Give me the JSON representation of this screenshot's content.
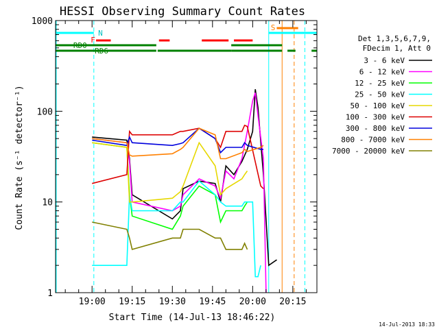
{
  "chart_data": {
    "type": "line",
    "title": "HESSI Observing Summary Count Rates",
    "xlabel": "Start Time (14-Jul-13 18:46:22)",
    "ylabel": "Count Rate (s⁻¹ detector⁻¹)",
    "y_scale": "log",
    "ylim": [
      1,
      1000
    ],
    "xlim": [
      "18:46:22",
      "20:24:00"
    ],
    "x_ticks": [
      "19:00",
      "19:15",
      "19:30",
      "19:45",
      "20:00",
      "20:15"
    ],
    "y_ticks": [
      "1",
      "10",
      "100",
      "1000"
    ],
    "grid": false,
    "legend_header": [
      "Det 1,3,5,6,7,9,",
      "FDecim 1, Att 0"
    ],
    "legend_position": "right",
    "timestamp": "14-Jul-2013 18:33",
    "flag_labels": {
      "N": "N",
      "F": "F",
      "RD0": "RD0",
      "RD6": "RD6",
      "S": "S"
    },
    "series": [
      {
        "name": "3 - 6 keV",
        "color": "#000000",
        "points": [
          [
            0,
            52
          ],
          [
            13,
            48
          ],
          [
            14,
            30
          ],
          [
            15,
            12
          ],
          [
            30,
            6.5
          ],
          [
            33,
            8
          ],
          [
            34,
            14
          ],
          [
            40,
            17
          ],
          [
            46,
            16
          ],
          [
            48,
            10
          ],
          [
            50,
            25
          ],
          [
            53,
            20
          ],
          [
            56,
            28
          ],
          [
            58,
            38
          ],
          [
            60,
            60
          ],
          [
            61,
            175
          ],
          [
            62,
            110
          ],
          [
            64,
            20
          ],
          [
            66,
            2
          ],
          [
            68,
            2.2
          ],
          [
            69,
            2.3
          ]
        ]
      },
      {
        "name": "6 - 12 keV",
        "color": "#ff00ff",
        "points": [
          [
            0,
            50
          ],
          [
            13,
            45
          ],
          [
            14,
            28
          ],
          [
            15,
            10
          ],
          [
            30,
            8
          ],
          [
            33,
            9
          ],
          [
            34,
            12
          ],
          [
            40,
            18
          ],
          [
            46,
            15
          ],
          [
            48,
            11
          ],
          [
            50,
            22
          ],
          [
            53,
            18
          ],
          [
            56,
            30
          ],
          [
            58,
            60
          ],
          [
            60,
            130
          ],
          [
            61,
            160
          ],
          [
            62,
            90
          ],
          [
            64,
            30
          ],
          [
            65,
            1
          ]
        ]
      },
      {
        "name": "12 - 25 keV",
        "color": "#00ff00",
        "points": [
          [
            0,
            45
          ],
          [
            13,
            40
          ],
          [
            14,
            12
          ],
          [
            15,
            7
          ],
          [
            30,
            5
          ],
          [
            33,
            7
          ],
          [
            34,
            9
          ],
          [
            40,
            15
          ],
          [
            46,
            12
          ],
          [
            48,
            6
          ],
          [
            50,
            8
          ],
          [
            56,
            8
          ],
          [
            57,
            9
          ],
          [
            58,
            10
          ]
        ]
      },
      {
        "name": "25 - 50 keV",
        "color": "#00ffff",
        "points": [
          [
            0,
            2
          ],
          [
            13,
            2
          ],
          [
            14,
            12
          ],
          [
            15,
            8
          ],
          [
            30,
            8
          ],
          [
            33,
            10
          ],
          [
            34,
            10
          ],
          [
            40,
            17
          ],
          [
            46,
            12
          ],
          [
            48,
            10
          ],
          [
            50,
            9
          ],
          [
            56,
            9
          ],
          [
            57,
            10
          ],
          [
            58,
            10
          ],
          [
            60,
            10
          ],
          [
            61,
            1.5
          ],
          [
            62,
            1.5
          ],
          [
            63,
            2
          ]
        ]
      },
      {
        "name": "50 - 100 keV",
        "color": "#e6d800",
        "points": [
          [
            0,
            45
          ],
          [
            13,
            40
          ],
          [
            14,
            10
          ],
          [
            15,
            10
          ],
          [
            30,
            11
          ],
          [
            33,
            13
          ],
          [
            34,
            15
          ],
          [
            40,
            45
          ],
          [
            46,
            25
          ],
          [
            48,
            12
          ],
          [
            50,
            14
          ],
          [
            56,
            18
          ],
          [
            57,
            20
          ],
          [
            58,
            22
          ]
        ]
      },
      {
        "name": "100 - 300 keV",
        "color": "#dd0000",
        "points": [
          [
            0,
            16
          ],
          [
            13,
            20
          ],
          [
            14,
            60
          ],
          [
            15,
            55
          ],
          [
            30,
            55
          ],
          [
            33,
            60
          ],
          [
            34,
            60
          ],
          [
            40,
            65
          ],
          [
            46,
            50
          ],
          [
            48,
            40
          ],
          [
            50,
            60
          ],
          [
            56,
            60
          ],
          [
            57,
            70
          ],
          [
            58,
            68
          ],
          [
            63,
            15
          ],
          [
            64,
            14
          ]
        ]
      },
      {
        "name": "300 - 800 keV",
        "color": "#0000dd",
        "points": [
          [
            0,
            48
          ],
          [
            13,
            42
          ],
          [
            14,
            52
          ],
          [
            15,
            45
          ],
          [
            30,
            42
          ],
          [
            33,
            44
          ],
          [
            34,
            45
          ],
          [
            40,
            65
          ],
          [
            46,
            50
          ],
          [
            48,
            35
          ],
          [
            50,
            40
          ],
          [
            56,
            40
          ],
          [
            57,
            45
          ],
          [
            58,
            42
          ],
          [
            63,
            38
          ],
          [
            64,
            38
          ]
        ]
      },
      {
        "name": "800 - 7000 keV",
        "color": "#ff8000",
        "points": [
          [
            0,
            50
          ],
          [
            13,
            45
          ],
          [
            14,
            33
          ],
          [
            15,
            32
          ],
          [
            30,
            34
          ],
          [
            33,
            38
          ],
          [
            34,
            40
          ],
          [
            40,
            65
          ],
          [
            46,
            55
          ],
          [
            48,
            30
          ],
          [
            50,
            30
          ],
          [
            56,
            35
          ],
          [
            57,
            38
          ],
          [
            58,
            36
          ],
          [
            63,
            40
          ],
          [
            64,
            42
          ]
        ]
      },
      {
        "name": "7000 - 20000 keV",
        "color": "#808000",
        "points": [
          [
            0,
            6
          ],
          [
            13,
            5
          ],
          [
            14,
            4
          ],
          [
            15,
            3
          ],
          [
            30,
            4
          ],
          [
            33,
            4
          ],
          [
            34,
            5
          ],
          [
            40,
            5
          ],
          [
            46,
            4
          ],
          [
            48,
            4
          ],
          [
            50,
            3
          ],
          [
            56,
            3
          ],
          [
            57,
            3.5
          ],
          [
            58,
            3
          ]
        ]
      }
    ]
  }
}
